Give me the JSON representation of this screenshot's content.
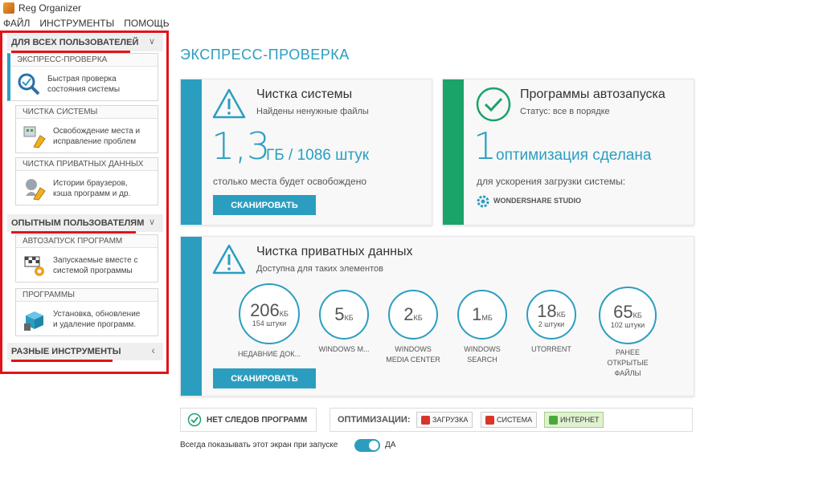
{
  "window": {
    "title": "Reg Organizer"
  },
  "menu": [
    "ФАЙЛ",
    "ИНСТРУМЕНТЫ",
    "ПОМОЩЬ"
  ],
  "sidebar": {
    "section1": "ДЛЯ ВСЕХ ПОЛЬЗОВАТЕЛЕЙ",
    "section2": "ОПЫТНЫМ ПОЛЬЗОВАТЕЛЯМ",
    "section3": "РАЗНЫЕ ИНСТРУМЕНТЫ",
    "cards": [
      {
        "title": "ЭКСПРЕСС-ПРОВЕРКА",
        "line1": "Быстрая проверка",
        "line2": "состояния системы",
        "icon": "magnifier-check-icon"
      },
      {
        "title": "ЧИСТКА СИСТЕМЫ",
        "line1": "Освобождение места и",
        "line2": "исправление проблем",
        "icon": "broom-icon"
      },
      {
        "title": "ЧИСТКА ПРИВАТНЫХ ДАННЫХ",
        "line1": "Истории браузеров,",
        "line2": "кэша программ и др.",
        "icon": "privacy-broom-icon"
      },
      {
        "title": "АВТОЗАПУСК ПРОГРАММ",
        "line1": "Запускаемые вместе с",
        "line2": "системой программы",
        "icon": "flag-gear-icon"
      },
      {
        "title": "ПРОГРАММЫ",
        "line1": "Установка, обновление",
        "line2": "и удаление программ.",
        "icon": "box-trash-icon"
      }
    ]
  },
  "main": {
    "title": "ЭКСПРЕСС-ПРОВЕРКА",
    "system_clean": {
      "title": "Чистка системы",
      "subtitle": "Найдены ненужные файлы",
      "big_number": "1,3",
      "unit": "ГБ / 1086 штук",
      "caption": "столько места будет освобождено",
      "button": "СКАНИРОВАТЬ"
    },
    "autorun": {
      "title": "Программы автозапуска",
      "subtitle": "Статус: все в порядке",
      "big_number": "1",
      "unit": "оптимизация сделана",
      "caption": "для ускорения загрузки системы:",
      "item": "WONDERSHARE STUDIO"
    },
    "private": {
      "title": "Чистка приватных данных",
      "subtitle": "Доступна для таких элементов",
      "button": "СКАНИРОВАТЬ",
      "items": [
        {
          "value": "206",
          "unit": "КБ",
          "sub": "154 штуки",
          "label1": "НЕДАВНИЕ ДОК...",
          "label2": "",
          "label3": ""
        },
        {
          "value": "5",
          "unit": "КБ",
          "sub": "",
          "label1": "WINDOWS M...",
          "label2": "",
          "label3": ""
        },
        {
          "value": "2",
          "unit": "КБ",
          "sub": "",
          "label1": "WINDOWS",
          "label2": "MEDIA CENTER",
          "label3": ""
        },
        {
          "value": "1",
          "unit": "МБ",
          "sub": "",
          "label1": "WINDOWS",
          "label2": "SEARCH",
          "label3": ""
        },
        {
          "value": "18",
          "unit": "КБ",
          "sub": "2 штуки",
          "label1": "UTORRENT",
          "label2": "",
          "label3": ""
        },
        {
          "value": "65",
          "unit": "КБ",
          "sub": "102 штуки",
          "label1": "РАНЕЕ",
          "label2": "ОТКРЫТЫЕ",
          "label3": "ФАЙЛЫ"
        }
      ]
    },
    "bottom": {
      "no_traces": "НЕТ СЛЕДОВ ПРОГРАММ",
      "optimization_label": "ОПТИМИЗАЦИИ:",
      "opt1": "ЗАГРУЗКА",
      "opt2": "СИСТЕМА",
      "opt3": "ИНТЕРНЕТ",
      "show_text": "Всегда показывать этот экран при запуске",
      "toggle_value": "ДА"
    }
  },
  "colors": {
    "accent": "#2b9ec0",
    "green": "#1aa36a",
    "red_highlight": "#e0131a"
  }
}
